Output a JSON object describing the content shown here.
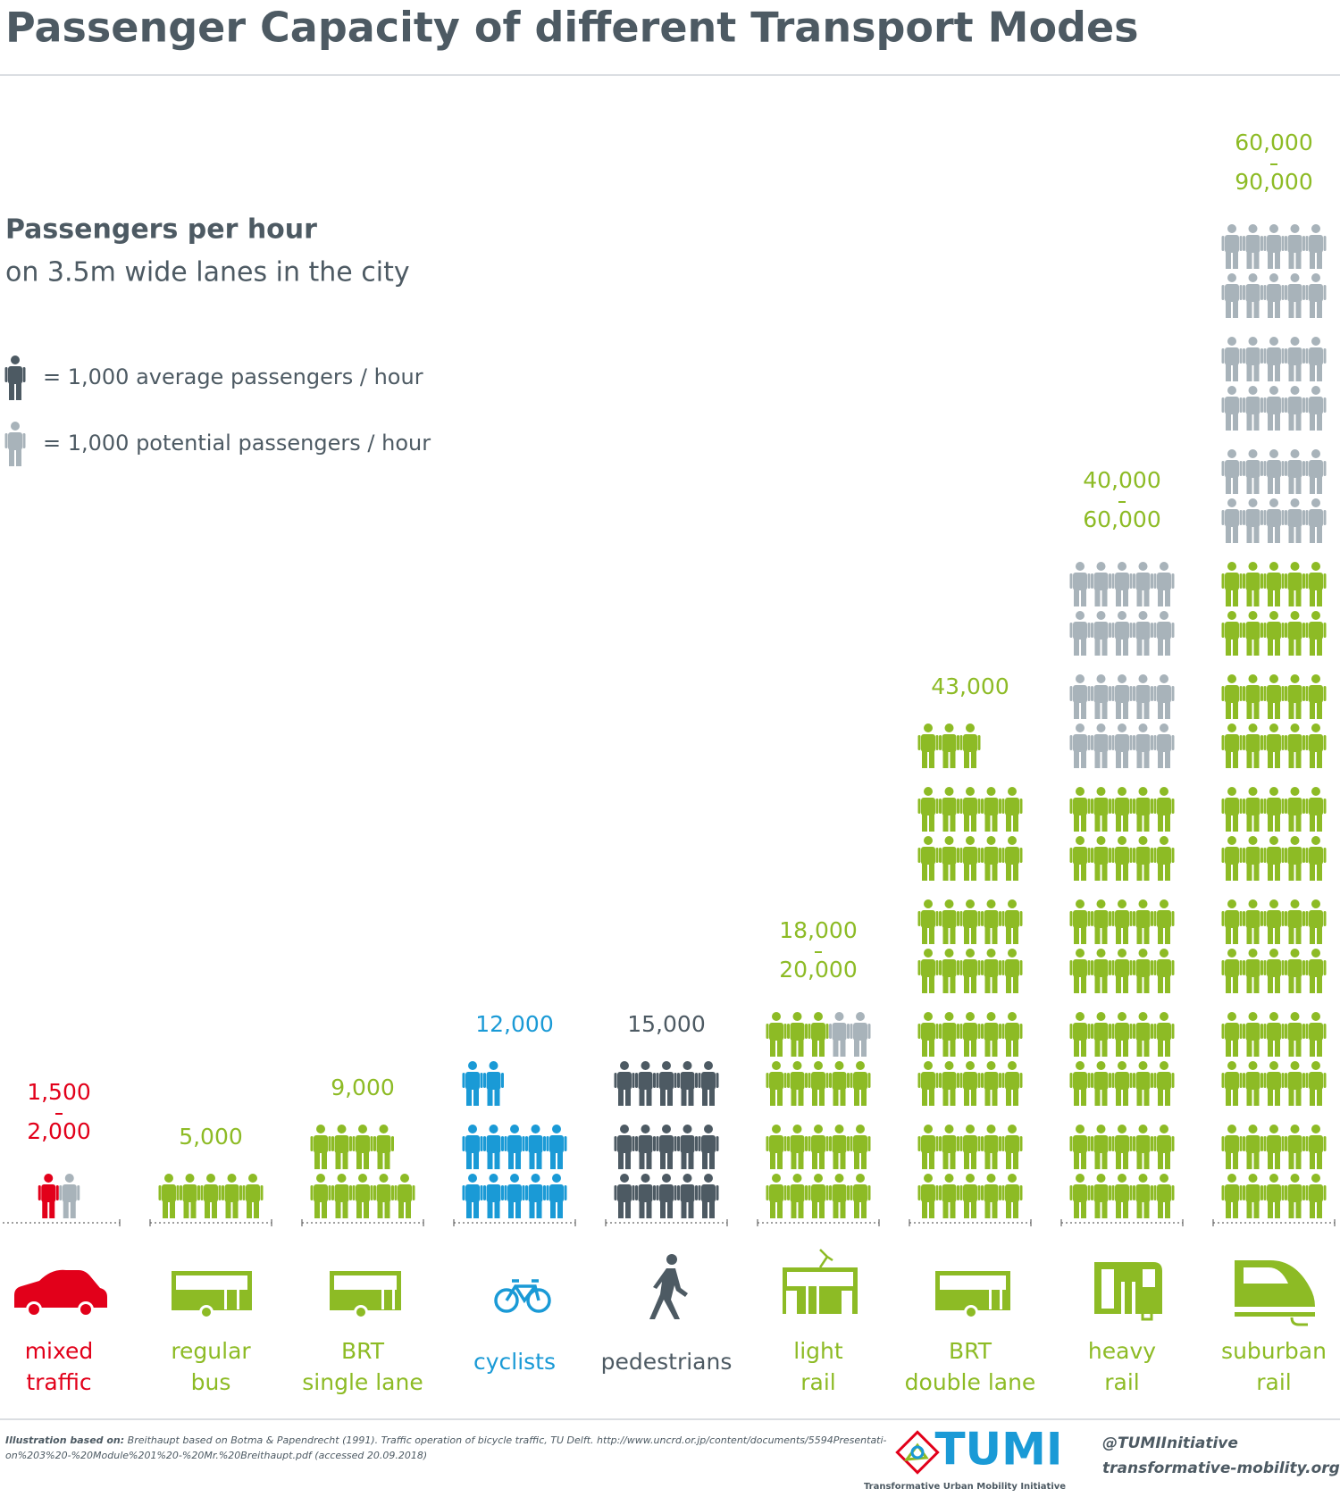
{
  "chart_data": {
    "type": "pictogram",
    "title": "Passenger Capacity of different Transport Modes",
    "subtitle": "Passengers per hour",
    "subtitle2": "on 3.5m wide lanes in the city",
    "icon_value": 1000,
    "legend": [
      {
        "label": "= 1,000 average passengers / hour",
        "color": "#4d5a63"
      },
      {
        "label": "= 1,000 potential passengers / hour",
        "color": "#a8b3ba"
      }
    ],
    "potential_color": "#a8b3ba",
    "categories": [
      [
        "mixed",
        "traffic"
      ],
      [
        "regular",
        "bus"
      ],
      [
        "BRT",
        "single  lane"
      ],
      [
        "cyclists"
      ],
      [
        "pedestrians"
      ],
      [
        "light",
        "rail"
      ],
      [
        "BRT",
        "double lane"
      ],
      [
        "heavy",
        "rail"
      ],
      [
        "suburban",
        "rail"
      ]
    ],
    "category_colors": [
      "#e2001a",
      "#8dbb25",
      "#8dbb25",
      "#1a9ad6",
      "#4d5a63",
      "#8dbb25",
      "#8dbb25",
      "#8dbb25",
      "#8dbb25"
    ],
    "low": [
      1500,
      5000,
      9000,
      12000,
      15000,
      18000,
      43000,
      40000,
      60000
    ],
    "high": [
      2000,
      null,
      null,
      null,
      null,
      20000,
      null,
      60000,
      90000
    ],
    "low_labels": [
      "1,500",
      "5,000",
      "9,000",
      "12,000",
      "15,000",
      "18,000",
      "43,000",
      "40,000",
      "60,000"
    ],
    "high_labels": [
      "2,000",
      null,
      null,
      null,
      null,
      "20,000",
      null,
      "60,000",
      "90,000"
    ]
  },
  "footer": {
    "source_label": "Illustration based on:",
    "source_lines": [
      "Breithaupt based on Botma & Papendrecht (1991). Traffic operation of bicycle traffic, TU Delft. http://www.uncrd.or.jp/content/documents/5594Presentati-",
      "on%203%20-%20Module%201%20-%20Mr.%20Breithaupt.pdf (accessed 20.09.2018)"
    ],
    "logo": "TUMI",
    "logo_caption": "Transformative Urban Mobility Initiative",
    "handle": "@TUMIInitiative",
    "website": "transformative-mobility.org"
  }
}
